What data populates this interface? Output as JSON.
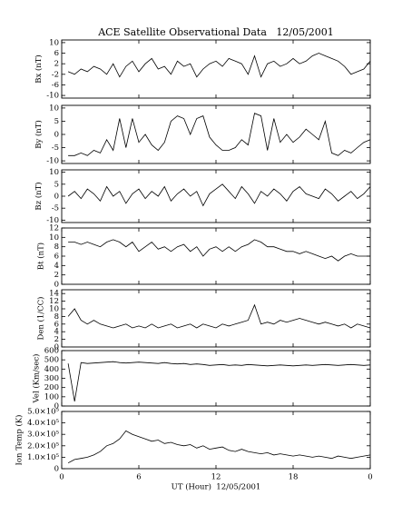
{
  "chart_data": [
    {
      "type": "line",
      "title": "ACE Satellite Observational Data   12/05/2001",
      "ylabel": "Bx (nT)",
      "color": "#000000",
      "x": [
        0,
        0.5,
        1,
        1.5,
        2,
        2.5,
        3,
        3.5,
        4,
        4.5,
        5,
        5.5,
        6,
        6.5,
        7,
        7.5,
        8,
        8.5,
        9,
        9.5,
        10,
        10.5,
        11,
        11.5,
        12,
        12.5,
        13,
        13.5,
        14,
        14.5,
        15,
        15.5,
        16,
        16.5,
        17,
        17.5,
        18,
        18.5,
        19,
        19.5,
        20,
        20.5,
        21,
        21.5,
        22,
        22.5,
        23,
        23.5,
        24
      ],
      "values": [
        null,
        -1,
        -2,
        0,
        -1,
        1,
        0,
        -2,
        2,
        -3,
        1,
        3,
        -1,
        2,
        4,
        0,
        1,
        -2,
        3,
        1,
        2,
        -3,
        0,
        2,
        3,
        1,
        4,
        3,
        2,
        -2,
        5,
        -3,
        2,
        3,
        1,
        2,
        4,
        2,
        3,
        5,
        6,
        5,
        4,
        3,
        1,
        -2,
        -1,
        0,
        3
      ],
      "xlim": [
        0,
        24
      ],
      "xticks": [
        0,
        6,
        12,
        18,
        24
      ],
      "ylim": [
        -11,
        11
      ],
      "yticks": [
        -10,
        -6,
        -2,
        2,
        6,
        10
      ]
    },
    {
      "type": "line",
      "ylabel": "By (nT)",
      "color": "#000000",
      "x": [
        0,
        0.5,
        1,
        1.5,
        2,
        2.5,
        3,
        3.5,
        4,
        4.5,
        5,
        5.5,
        6,
        6.5,
        7,
        7.5,
        8,
        8.5,
        9,
        9.5,
        10,
        10.5,
        11,
        11.5,
        12,
        12.5,
        13,
        13.5,
        14,
        14.5,
        15,
        15.5,
        16,
        16.5,
        17,
        17.5,
        18,
        18.5,
        19,
        19.5,
        20,
        20.5,
        21,
        21.5,
        22,
        22.5,
        23,
        23.5,
        24
      ],
      "values": [
        null,
        -8,
        -8,
        -7,
        -8,
        -6,
        -7,
        -2,
        -6,
        6,
        -5,
        6,
        -3,
        0,
        -4,
        -6,
        -3,
        5,
        7,
        6,
        0,
        6,
        7,
        -1,
        -4,
        -6,
        -6,
        -5,
        -2,
        -4,
        8,
        7,
        -6,
        6,
        -3,
        0,
        -3,
        -1,
        2,
        0,
        -2,
        5,
        -7,
        -8,
        -6,
        -7,
        -5,
        -3,
        -2
      ],
      "xlim": [
        0,
        24
      ],
      "xticks": [
        0,
        6,
        12,
        18,
        24
      ],
      "ylim": [
        -11,
        11
      ],
      "yticks": [
        -10,
        -5,
        0,
        5,
        10
      ]
    },
    {
      "type": "line",
      "ylabel": "Bz (nT)",
      "color": "#000000",
      "x": [
        0,
        0.5,
        1,
        1.5,
        2,
        2.5,
        3,
        3.5,
        4,
        4.5,
        5,
        5.5,
        6,
        6.5,
        7,
        7.5,
        8,
        8.5,
        9,
        9.5,
        10,
        10.5,
        11,
        11.5,
        12,
        12.5,
        13,
        13.5,
        14,
        14.5,
        15,
        15.5,
        16,
        16.5,
        17,
        17.5,
        18,
        18.5,
        19,
        19.5,
        20,
        20.5,
        21,
        21.5,
        22,
        22.5,
        23,
        23.5,
        24
      ],
      "values": [
        null,
        0,
        2,
        -1,
        3,
        1,
        -2,
        4,
        0,
        2,
        -3,
        1,
        3,
        -1,
        2,
        0,
        4,
        -2,
        1,
        3,
        0,
        2,
        -4,
        1,
        3,
        5,
        2,
        -1,
        4,
        1,
        -3,
        2,
        0,
        3,
        1,
        -2,
        2,
        4,
        1,
        0,
        -1,
        3,
        1,
        -2,
        0,
        2,
        -1,
        1,
        4
      ],
      "xlim": [
        0,
        24
      ],
      "xticks": [
        0,
        6,
        12,
        18,
        24
      ],
      "ylim": [
        -11,
        11
      ],
      "yticks": [
        -10,
        -5,
        0,
        5,
        10
      ]
    },
    {
      "type": "line",
      "ylabel": "Bt (nT)",
      "color": "#000000",
      "x": [
        0,
        0.5,
        1,
        1.5,
        2,
        2.5,
        3,
        3.5,
        4,
        4.5,
        5,
        5.5,
        6,
        6.5,
        7,
        7.5,
        8,
        8.5,
        9,
        9.5,
        10,
        10.5,
        11,
        11.5,
        12,
        12.5,
        13,
        13.5,
        14,
        14.5,
        15,
        15.5,
        16,
        16.5,
        17,
        17.5,
        18,
        18.5,
        19,
        19.5,
        20,
        20.5,
        21,
        21.5,
        22,
        22.5,
        23,
        23.5,
        24
      ],
      "values": [
        null,
        9,
        9,
        8.5,
        9,
        8.5,
        8,
        9,
        9.5,
        9,
        8,
        9,
        7,
        8,
        9,
        7.5,
        8,
        7,
        8,
        8.5,
        7,
        8,
        6,
        7.5,
        8,
        7,
        8,
        7,
        8,
        8.5,
        9.5,
        9,
        8,
        8,
        7.5,
        7,
        7,
        6.5,
        7,
        6.5,
        6,
        5.5,
        6,
        5,
        6,
        6.5,
        6,
        6,
        6
      ],
      "xlim": [
        0,
        24
      ],
      "xticks": [
        0,
        6,
        12,
        18,
        24
      ],
      "ylim": [
        0,
        12
      ],
      "yticks": [
        0,
        2,
        4,
        6,
        8,
        10,
        12
      ]
    },
    {
      "type": "line",
      "ylabel": "Den (1/CC)",
      "color": "#000000",
      "x": [
        0,
        0.5,
        1,
        1.5,
        2,
        2.5,
        3,
        3.5,
        4,
        4.5,
        5,
        5.5,
        6,
        6.5,
        7,
        7.5,
        8,
        8.5,
        9,
        9.5,
        10,
        10.5,
        11,
        11.5,
        12,
        12.5,
        13,
        13.5,
        14,
        14.5,
        15,
        15.5,
        16,
        16.5,
        17,
        17.5,
        18,
        18.5,
        19,
        19.5,
        20,
        20.5,
        21,
        21.5,
        22,
        22.5,
        23,
        23.5,
        24
      ],
      "values": [
        null,
        8,
        10,
        7,
        6,
        7,
        6,
        5.5,
        5,
        5.5,
        6,
        5,
        5.5,
        5,
        6,
        5,
        5.5,
        6,
        5,
        5.5,
        6,
        5,
        6,
        5.5,
        5,
        6,
        5.5,
        6,
        6.5,
        7,
        11,
        6,
        6.5,
        6,
        7,
        6.5,
        7,
        7.5,
        7,
        6.5,
        6,
        6.5,
        6,
        5.5,
        6,
        5,
        6,
        5.5,
        5
      ],
      "xlim": [
        0,
        24
      ],
      "xticks": [
        0,
        6,
        12,
        18,
        24
      ],
      "ylim": [
        0,
        15
      ],
      "yticks": [
        0,
        2,
        4,
        6,
        8,
        10,
        12,
        14
      ]
    },
    {
      "type": "line",
      "ylabel": "Vel (Km/sec)",
      "color": "#000000",
      "x": [
        0,
        0.5,
        1,
        1.5,
        2,
        2.5,
        3,
        3.5,
        4,
        4.5,
        5,
        5.5,
        6,
        6.5,
        7,
        7.5,
        8,
        8.5,
        9,
        9.5,
        10,
        10.5,
        11,
        11.5,
        12,
        12.5,
        13,
        13.5,
        14,
        14.5,
        15,
        15.5,
        16,
        16.5,
        17,
        17.5,
        18,
        18.5,
        19,
        19.5,
        20,
        20.5,
        21,
        21.5,
        22,
        22.5,
        23,
        23.5,
        24
      ],
      "values": [
        null,
        460,
        50,
        470,
        460,
        465,
        470,
        475,
        480,
        470,
        465,
        470,
        475,
        470,
        465,
        460,
        470,
        460,
        455,
        460,
        450,
        455,
        450,
        440,
        445,
        450,
        440,
        445,
        440,
        450,
        445,
        440,
        435,
        440,
        445,
        440,
        435,
        440,
        445,
        440,
        445,
        450,
        445,
        440,
        445,
        450,
        445,
        440,
        445
      ],
      "xlim": [
        0,
        24
      ],
      "xticks": [
        0,
        6,
        12,
        18,
        24
      ],
      "ylim": [
        0,
        600
      ],
      "yticks": [
        0,
        100,
        200,
        300,
        400,
        500,
        600
      ]
    },
    {
      "type": "line",
      "ylabel": "Ion Temp (K)",
      "xlabel": "UT (Hour)  12/05/2001",
      "color": "#000000",
      "x": [
        0,
        0.5,
        1,
        1.5,
        2,
        2.5,
        3,
        3.5,
        4,
        4.5,
        5,
        5.5,
        6,
        6.5,
        7,
        7.5,
        8,
        8.5,
        9,
        9.5,
        10,
        10.5,
        11,
        11.5,
        12,
        12.5,
        13,
        13.5,
        14,
        14.5,
        15,
        15.5,
        16,
        16.5,
        17,
        17.5,
        18,
        18.5,
        19,
        19.5,
        20,
        20.5,
        21,
        21.5,
        22,
        22.5,
        23,
        23.5,
        24
      ],
      "values": [
        null,
        50000,
        80000,
        90000,
        100000,
        120000,
        150000,
        200000,
        220000,
        260000,
        330000,
        300000,
        280000,
        260000,
        240000,
        250000,
        220000,
        230000,
        210000,
        200000,
        210000,
        180000,
        200000,
        170000,
        180000,
        190000,
        160000,
        150000,
        170000,
        150000,
        140000,
        130000,
        140000,
        120000,
        130000,
        120000,
        110000,
        120000,
        110000,
        100000,
        110000,
        100000,
        90000,
        110000,
        100000,
        90000,
        100000,
        110000,
        120000
      ],
      "xlim": [
        0,
        24
      ],
      "xticks": [
        0,
        6,
        12,
        18,
        {
          "value": 24,
          "label": "0"
        }
      ],
      "ylim": [
        0,
        500000
      ],
      "yticks": [
        0,
        {
          "value": 100000,
          "label": "1.0×10⁵"
        },
        {
          "value": 200000,
          "label": "2.0×10⁵"
        },
        {
          "value": 300000,
          "label": "3.0×10⁵"
        },
        {
          "value": 400000,
          "label": "4.0×10⁵"
        },
        {
          "value": 500000,
          "label": "5.0×10⁵"
        }
      ]
    }
  ]
}
